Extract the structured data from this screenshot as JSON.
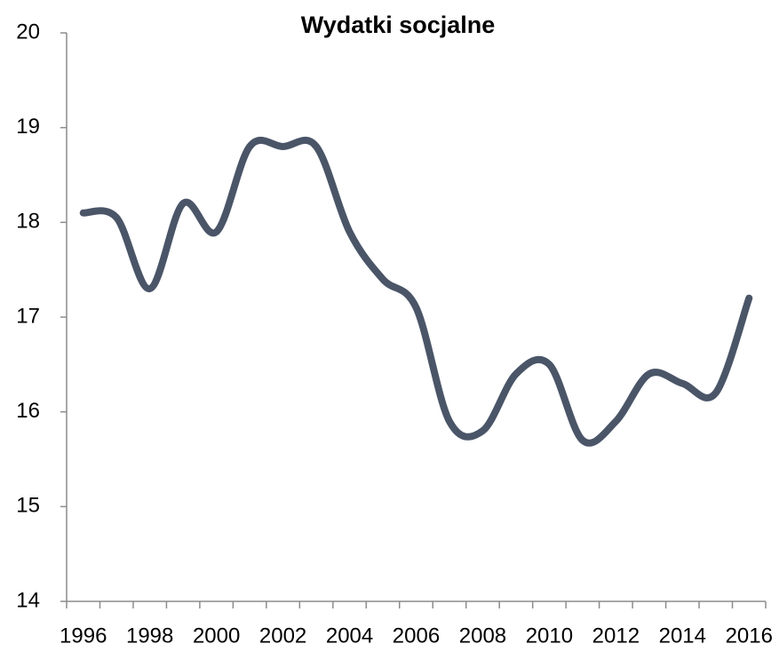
{
  "chart_data": {
    "type": "line",
    "title": "Wydatki socjalne",
    "categories": [
      "1996",
      null,
      "1998",
      null,
      "2000",
      null,
      "2002",
      null,
      "2004",
      null,
      "2006",
      null,
      "2008",
      null,
      "2010",
      null,
      "2012",
      null,
      "2014",
      null,
      "2016"
    ],
    "series": [
      {
        "name": "Wydatki socjalne",
        "color": "#4a5568",
        "values": [
          18.1,
          18.05,
          17.3,
          18.2,
          17.9,
          18.8,
          18.8,
          18.8,
          17.9,
          17.4,
          17.1,
          15.9,
          15.8,
          16.4,
          16.5,
          15.7,
          15.9,
          16.4,
          16.3,
          16.2,
          17.2
        ]
      }
    ],
    "ylim": [
      14,
      20
    ],
    "yticks": [
      14,
      15,
      16,
      17,
      18,
      19,
      20
    ],
    "smooth": true
  }
}
